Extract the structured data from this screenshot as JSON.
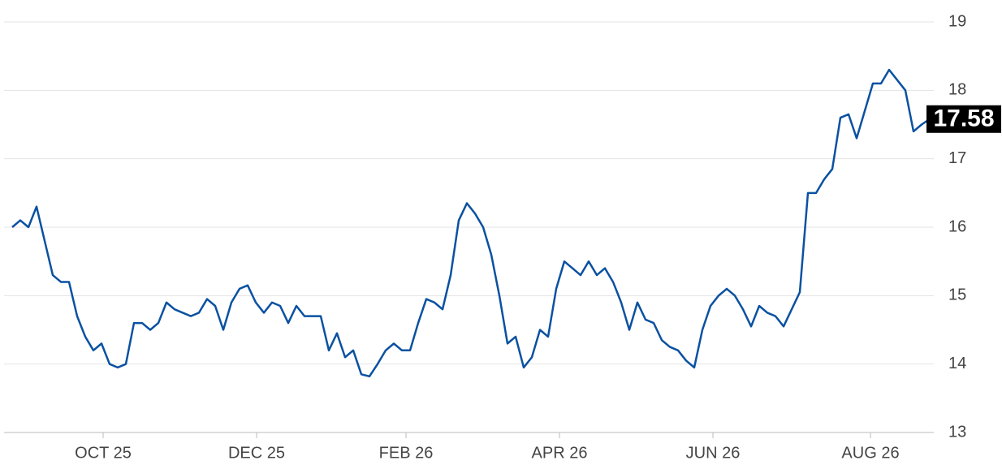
{
  "chart_data": {
    "type": "line",
    "color": "#0a51a1",
    "values": [
      16.0,
      16.1,
      16.0,
      16.3,
      15.8,
      15.3,
      15.2,
      15.2,
      14.7,
      14.4,
      14.2,
      14.3,
      14.0,
      13.95,
      14.0,
      14.6,
      14.6,
      14.5,
      14.6,
      14.9,
      14.8,
      14.75,
      14.7,
      14.75,
      14.95,
      14.85,
      14.5,
      14.9,
      15.1,
      15.15,
      14.9,
      14.75,
      14.9,
      14.85,
      14.6,
      14.85,
      14.7,
      14.7,
      14.7,
      14.2,
      14.45,
      14.1,
      14.2,
      13.85,
      13.82,
      14.0,
      14.2,
      14.3,
      14.2,
      14.2,
      14.6,
      14.95,
      14.9,
      14.8,
      15.3,
      16.1,
      16.35,
      16.2,
      16.0,
      15.6,
      15.0,
      14.3,
      14.4,
      13.95,
      14.1,
      14.5,
      14.4,
      15.1,
      15.5,
      15.4,
      15.3,
      15.5,
      15.3,
      15.4,
      15.2,
      14.9,
      14.5,
      14.9,
      14.65,
      14.6,
      14.35,
      14.25,
      14.2,
      14.05,
      13.95,
      14.5,
      14.85,
      15.0,
      15.1,
      15.0,
      14.8,
      14.55,
      14.85,
      14.75,
      14.7,
      14.55,
      14.8,
      15.05,
      16.5,
      16.5,
      16.7,
      16.85,
      17.6,
      17.65,
      17.3,
      17.7,
      18.1,
      18.1,
      18.3,
      18.15,
      18.0,
      17.4,
      17.5,
      17.58
    ],
    "xlim": [
      -1,
      113.5
    ],
    "xticks": [
      {
        "value": 11.2,
        "label": "OCT 25"
      },
      {
        "value": 30.1,
        "label": "DEC 25"
      },
      {
        "value": 48.5,
        "label": "FEB 26"
      },
      {
        "value": 67.4,
        "label": "APR 26"
      },
      {
        "value": 86.3,
        "label": "JUN 26"
      },
      {
        "value": 105.7,
        "label": "AUG 26"
      }
    ],
    "ylim": [
      13,
      19
    ],
    "yticks": [
      13,
      14,
      15,
      16,
      17,
      18,
      19
    ],
    "grid": true
  }
}
